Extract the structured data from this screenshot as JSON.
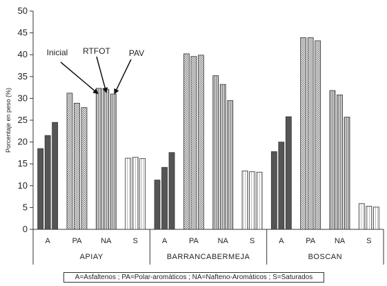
{
  "chart_data": {
    "type": "bar",
    "ylabel": "Porcentaje en peso (%)",
    "ylim": [
      0,
      50
    ],
    "yticks": [
      0,
      5,
      10,
      15,
      20,
      25,
      30,
      35,
      40,
      45,
      50
    ],
    "grid": false,
    "groups": [
      {
        "name": "APIAY",
        "fractions": [
          {
            "label": "A",
            "values": [
              18.5,
              21.5,
              24.5
            ]
          },
          {
            "label": "PA",
            "values": [
              31.2,
              28.9,
              27.9
            ]
          },
          {
            "label": "NA",
            "values": [
              32.3,
              32.1,
              31.0
            ]
          },
          {
            "label": "S",
            "values": [
              16.3,
              16.5,
              16.2
            ]
          }
        ]
      },
      {
        "name": "BARRANCABERMEJA",
        "fractions": [
          {
            "label": "A",
            "values": [
              11.3,
              14.2,
              17.6
            ]
          },
          {
            "label": "PA",
            "values": [
              40.2,
              39.6,
              39.9
            ]
          },
          {
            "label": "NA",
            "values": [
              35.2,
              33.2,
              29.5
            ]
          },
          {
            "label": "S",
            "values": [
              13.4,
              13.2,
              13.1
            ]
          }
        ]
      },
      {
        "name": "BOSCAN",
        "fractions": [
          {
            "label": "A",
            "values": [
              17.8,
              20.0,
              25.8
            ]
          },
          {
            "label": "PA",
            "values": [
              43.9,
              43.9,
              43.2
            ]
          },
          {
            "label": "NA",
            "values": [
              31.8,
              30.8,
              25.7
            ]
          },
          {
            "label": "S",
            "values": [
              5.9,
              5.3,
              5.1
            ]
          }
        ]
      }
    ],
    "annotations": [
      "Inicial",
      "RTFOT",
      "PAV"
    ],
    "legend_text": "A=Asfaltenos ; PA=Polar-aromáticos ; NA=Nafteno-Aromáticos ; S=Saturados",
    "colors": {
      "A": "#555555",
      "PA": "#d8d8d8",
      "NA": "#bdbdbd",
      "S": "#fafafa"
    }
  }
}
